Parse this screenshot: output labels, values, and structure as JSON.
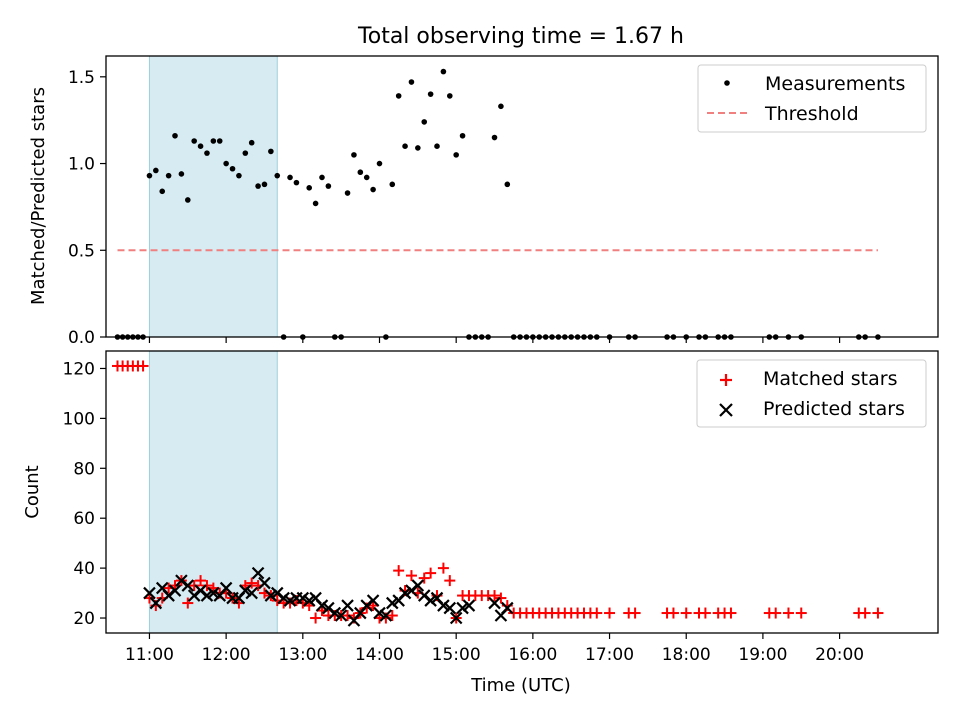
{
  "title": "Total observing time = 1.67 h",
  "chart_data": [
    {
      "type": "scatter",
      "ylabel": "Matched/Predicted stars",
      "xlim": [
        "10:26",
        "21:17"
      ],
      "ylim": [
        0,
        1.62
      ],
      "yticks": [
        0.0,
        0.5,
        1.0,
        1.5
      ],
      "ytick_labels": [
        "0.0",
        "0.5",
        "1.0",
        "1.5"
      ],
      "grid": false,
      "legend_position": "top-right",
      "highlight_span": [
        "11:00",
        "12:40"
      ],
      "highlight_color": "#add8e6",
      "threshold": {
        "name": "Threshold",
        "value": 0.5,
        "x_range": [
          "10:35",
          "20:30"
        ],
        "color": "#f08080"
      },
      "series": [
        {
          "name": "Measurements",
          "marker": "dot",
          "color": "#000000",
          "x": [
            "10:35",
            "10:39",
            "10:43",
            "10:47",
            "10:51",
            "10:55",
            "11:00",
            "11:05",
            "11:10",
            "11:15",
            "11:20",
            "11:25",
            "11:30",
            "11:35",
            "11:40",
            "11:45",
            "11:50",
            "11:55",
            "12:00",
            "12:05",
            "12:10",
            "12:15",
            "12:20",
            "12:25",
            "12:30",
            "12:35",
            "12:40",
            "12:45",
            "12:50",
            "12:55",
            "13:00",
            "13:05",
            "13:10",
            "13:15",
            "13:20",
            "13:25",
            "13:30",
            "13:35",
            "13:40",
            "13:45",
            "13:50",
            "13:55",
            "14:00",
            "14:05",
            "14:10",
            "14:15",
            "14:20",
            "14:25",
            "14:30",
            "14:35",
            "14:40",
            "14:45",
            "14:50",
            "14:55",
            "15:00",
            "15:05",
            "15:10",
            "15:15",
            "15:20",
            "15:25",
            "15:30",
            "15:35",
            "15:40",
            "15:45",
            "15:50",
            "15:55",
            "16:00",
            "16:05",
            "16:10",
            "16:15",
            "16:20",
            "16:25",
            "16:30",
            "16:35",
            "16:40",
            "16:45",
            "16:50",
            "17:00",
            "17:15",
            "17:20",
            "17:45",
            "17:50",
            "18:00",
            "18:10",
            "18:15",
            "18:25",
            "18:30",
            "18:35",
            "19:05",
            "19:10",
            "19:20",
            "19:30",
            "20:15",
            "20:20",
            "20:30"
          ],
          "y": [
            0,
            0,
            0,
            0,
            0,
            0,
            0.93,
            0.96,
            0.84,
            0.93,
            1.16,
            0.94,
            0.79,
            1.13,
            1.1,
            1.06,
            1.13,
            1.13,
            1.0,
            0.97,
            0.93,
            1.06,
            1.12,
            0.87,
            0.88,
            1.07,
            0.93,
            0,
            0.92,
            0.89,
            0,
            0.86,
            0.77,
            0.92,
            0.87,
            0,
            0,
            0.83,
            1.05,
            0.95,
            0.92,
            0.85,
            1.0,
            0,
            0.88,
            1.39,
            1.1,
            1.47,
            1.09,
            1.24,
            1.4,
            1.1,
            1.53,
            1.39,
            1.05,
            1.16,
            0,
            0,
            0,
            0,
            1.15,
            1.33,
            0.88,
            0,
            0,
            0,
            0,
            0,
            0,
            0,
            0,
            0,
            0,
            0,
            0,
            0,
            0,
            0,
            0,
            0,
            0,
            0,
            0,
            0,
            0,
            0,
            0,
            0,
            0,
            0,
            0,
            0,
            0,
            0,
            0
          ]
        }
      ]
    },
    {
      "type": "scatter",
      "xlabel": "Time (UTC)",
      "ylabel": "Count",
      "xlim": [
        "10:26",
        "21:17"
      ],
      "ylim": [
        14,
        127
      ],
      "xticks": [
        "11:00",
        "12:00",
        "13:00",
        "14:00",
        "15:00",
        "16:00",
        "17:00",
        "18:00",
        "19:00",
        "20:00"
      ],
      "xtick_labels": [
        "11:00",
        "12:00",
        "13:00",
        "14:00",
        "15:00",
        "16:00",
        "17:00",
        "18:00",
        "19:00",
        "20:00"
      ],
      "yticks": [
        20,
        40,
        60,
        80,
        100,
        120
      ],
      "ytick_labels": [
        "20",
        "40",
        "60",
        "80",
        "100",
        "120"
      ],
      "grid": false,
      "legend_position": "top-right",
      "highlight_span": [
        "11:00",
        "12:40"
      ],
      "highlight_color": "#add8e6",
      "series": [
        {
          "name": "Matched stars",
          "marker": "plus",
          "color": "#ff0000",
          "x": [
            "10:35",
            "10:39",
            "10:43",
            "10:47",
            "10:51",
            "10:55",
            "11:00",
            "11:05",
            "11:10",
            "11:15",
            "11:20",
            "11:25",
            "11:30",
            "11:35",
            "11:40",
            "11:45",
            "11:50",
            "11:55",
            "12:00",
            "12:05",
            "12:10",
            "12:15",
            "12:20",
            "12:25",
            "12:30",
            "12:35",
            "12:40",
            "12:45",
            "12:50",
            "12:55",
            "13:00",
            "13:05",
            "13:10",
            "13:15",
            "13:20",
            "13:25",
            "13:30",
            "13:35",
            "13:40",
            "13:45",
            "13:50",
            "13:55",
            "14:00",
            "14:05",
            "14:10",
            "14:15",
            "14:20",
            "14:25",
            "14:30",
            "14:35",
            "14:40",
            "14:45",
            "14:50",
            "14:55",
            "15:00",
            "15:05",
            "15:10",
            "15:15",
            "15:20",
            "15:25",
            "15:30",
            "15:35",
            "15:40",
            "15:45",
            "15:50",
            "15:55",
            "16:00",
            "16:05",
            "16:10",
            "16:15",
            "16:20",
            "16:25",
            "16:30",
            "16:35",
            "16:40",
            "16:45",
            "16:50",
            "17:00",
            "17:15",
            "17:20",
            "17:45",
            "17:50",
            "18:00",
            "18:10",
            "18:15",
            "18:25",
            "18:30",
            "18:35",
            "19:05",
            "19:10",
            "19:20",
            "19:30",
            "20:15",
            "20:20",
            "20:30"
          ],
          "y": [
            121,
            121,
            121,
            121,
            121,
            121,
            28,
            25,
            28,
            32,
            33,
            35,
            26,
            33,
            35,
            33,
            32,
            30,
            30,
            28,
            26,
            33,
            34,
            33,
            30,
            29,
            27,
            26,
            26,
            27,
            26,
            25,
            20,
            23,
            21,
            21,
            21,
            21,
            20,
            22,
            24,
            25,
            20,
            20,
            21,
            39,
            31,
            37,
            30,
            36,
            38,
            29,
            40,
            35,
            20,
            29,
            29,
            29,
            29,
            29,
            29,
            28,
            25,
            22,
            22,
            22,
            22,
            22,
            22,
            22,
            22,
            22,
            22,
            22,
            22,
            22,
            22,
            22,
            22,
            22,
            22,
            22,
            22,
            22,
            22,
            22,
            22,
            22,
            22,
            22,
            22,
            22,
            22,
            22,
            22
          ]
        },
        {
          "name": "Predicted stars",
          "marker": "x",
          "color": "#000000",
          "x": [
            "11:00",
            "11:05",
            "11:10",
            "11:15",
            "11:20",
            "11:25",
            "11:30",
            "11:35",
            "11:40",
            "11:45",
            "11:50",
            "11:55",
            "12:00",
            "12:05",
            "12:10",
            "12:15",
            "12:20",
            "12:25",
            "12:30",
            "12:35",
            "12:40",
            "12:45",
            "12:50",
            "12:55",
            "13:00",
            "13:05",
            "13:10",
            "13:15",
            "13:20",
            "13:25",
            "13:30",
            "13:35",
            "13:40",
            "13:45",
            "13:50",
            "13:55",
            "14:00",
            "14:05",
            "14:10",
            "14:15",
            "14:20",
            "14:25",
            "14:30",
            "14:35",
            "14:40",
            "14:45",
            "14:50",
            "14:55",
            "15:00",
            "15:05",
            "15:10",
            "15:30",
            "15:35",
            "15:40"
          ],
          "y": [
            30,
            26,
            32,
            29,
            31,
            35,
            33,
            29,
            31,
            29,
            30,
            29,
            32,
            28,
            28,
            31,
            30,
            38,
            34,
            29,
            30,
            28,
            27,
            28,
            28,
            27,
            28,
            25,
            24,
            22,
            21,
            25,
            19,
            22,
            25,
            27,
            22,
            21,
            26,
            27,
            30,
            31,
            33,
            29,
            27,
            28,
            25,
            24,
            20,
            24,
            25,
            26,
            21,
            24
          ]
        }
      ]
    }
  ]
}
